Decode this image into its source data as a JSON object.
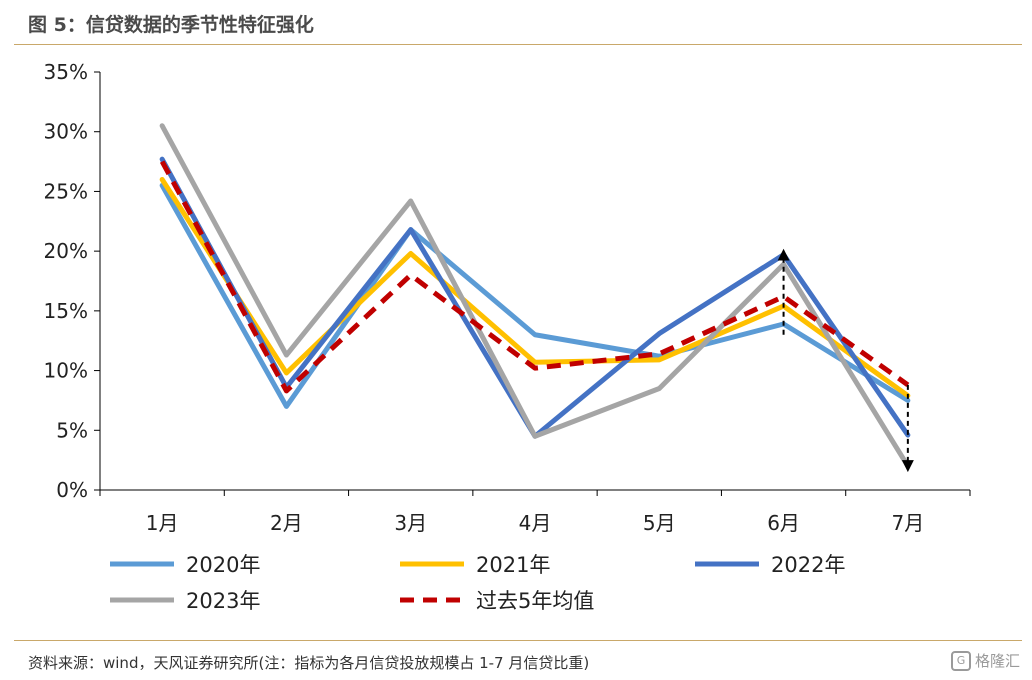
{
  "header": {
    "title": "图 5：信贷数据的季节性特征强化"
  },
  "footer": {
    "source": "资料来源：wind，天风证券研究所(注：指标为各月信贷投放规模占 1-7 月信贷比重)",
    "logo_text": "格隆汇"
  },
  "chart_data": {
    "type": "line",
    "categories": [
      "1月",
      "2月",
      "3月",
      "4月",
      "5月",
      "6月",
      "7月"
    ],
    "ylim": [
      0,
      35
    ],
    "yticks": [
      "0%",
      "5%",
      "10%",
      "15%",
      "20%",
      "25%",
      "30%",
      "35%"
    ],
    "grid": false,
    "legend_position": "bottom",
    "series": [
      {
        "name": "2020年",
        "values": [
          25.5,
          7.0,
          21.8,
          13.0,
          11.2,
          13.9,
          7.5
        ],
        "color": "#5b9bd5",
        "dashed": false
      },
      {
        "name": "2021年",
        "values": [
          26.0,
          9.8,
          19.8,
          10.7,
          10.9,
          15.4,
          7.9
        ],
        "color": "#ffc000",
        "dashed": false
      },
      {
        "name": "2022年",
        "values": [
          27.7,
          8.6,
          21.8,
          4.5,
          13.1,
          19.7,
          4.6
        ],
        "color": "#4472c4",
        "dashed": false
      },
      {
        "name": "2023年",
        "values": [
          30.5,
          11.3,
          24.2,
          4.5,
          8.5,
          18.9,
          2.0
        ],
        "color": "#a5a5a5",
        "dashed": false
      },
      {
        "name": "过去5年均值",
        "values": [
          27.5,
          8.3,
          18.0,
          10.2,
          11.4,
          16.2,
          8.8
        ],
        "color": "#c00000",
        "dashed": true
      }
    ],
    "annotations": [
      {
        "category": "6月",
        "from": 13.0,
        "to": 19.7,
        "style": "dashed-arrow-up"
      },
      {
        "category": "7月",
        "from": 8.8,
        "to": 2.0,
        "style": "dashed-arrow-down"
      }
    ]
  }
}
